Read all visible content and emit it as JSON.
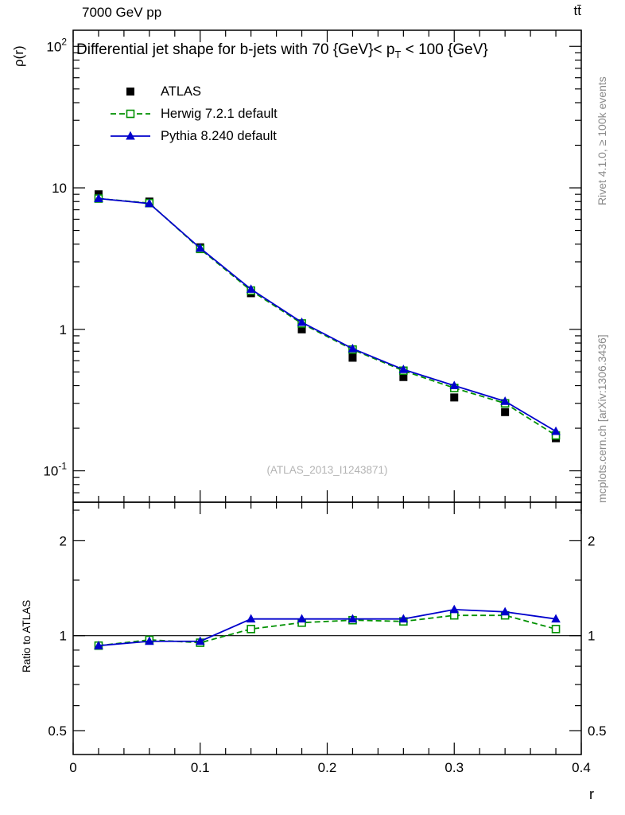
{
  "labels": {
    "header_left": "7000 GeV pp",
    "header_right": "tt̄",
    "title_prefix": "Differential jet shape for b-jets with 70 {GeV}< p",
    "title_sub": "T",
    "title_suffix": " < 100 {GeV}",
    "watermark": "(ATLAS_2013_I1243871)",
    "rivet_note": "Rivet 4.1.0, ≥ 100k events",
    "mcplots_note": "mcplots.cern.ch [arXiv:1306.3436]"
  },
  "chart_data": {
    "type": "line",
    "title": "Differential jet shape for b-jets with 70 {GeV}< p_T < 100 {GeV}",
    "xlabel": "r",
    "ylabel": "ρ(r)",
    "ratio_ylabel": "Ratio to ATLAS",
    "yscale": "log",
    "grid": false,
    "legend_position": "top-left",
    "xlim": [
      0,
      0.4
    ],
    "ylim_main": [
      0.06,
      130
    ],
    "ylim_ratio": [
      0.42,
      2.65
    ],
    "xticks": [
      0,
      0.1,
      0.2,
      0.3,
      0.4
    ],
    "yticks_main": [
      100,
      10,
      1,
      0.1
    ],
    "yticks_ratio": [
      2,
      1,
      0.5
    ],
    "ratio_minor_ticks": [
      0.6,
      0.7,
      0.8,
      0.9,
      1.5,
      2.5
    ],
    "x": [
      0.02,
      0.06,
      0.1,
      0.14,
      0.18,
      0.22,
      0.26,
      0.3,
      0.34,
      0.38
    ],
    "series": [
      {
        "name": "ATLAS",
        "color": "#000000",
        "marker": "filled-square",
        "line": "none",
        "values": [
          9.0,
          8.0,
          3.8,
          1.8,
          1.0,
          0.63,
          0.46,
          0.33,
          0.26,
          0.17
        ]
      },
      {
        "name": "Herwig 7.2.1 default",
        "color": "#009000",
        "marker": "open-square",
        "line": "dashed",
        "values": [
          8.4,
          7.8,
          3.7,
          1.88,
          1.1,
          0.72,
          0.51,
          0.385,
          0.3,
          0.178
        ]
      },
      {
        "name": "Pythia 8.240 default",
        "color": "#0000cc",
        "marker": "filled-triangle",
        "line": "solid",
        "values": [
          8.4,
          7.75,
          3.75,
          1.92,
          1.12,
          0.73,
          0.52,
          0.4,
          0.31,
          0.19
        ]
      }
    ],
    "ratio_series": [
      {
        "name": "Herwig 7.2.1 default",
        "color": "#009000",
        "marker": "open-square",
        "line": "dashed",
        "values": [
          0.93,
          0.97,
          0.95,
          1.05,
          1.1,
          1.12,
          1.11,
          1.16,
          1.16,
          1.05
        ]
      },
      {
        "name": "Pythia 8.240 default",
        "color": "#0000cc",
        "marker": "filled-triangle",
        "line": "solid",
        "values": [
          0.93,
          0.96,
          0.96,
          1.13,
          1.13,
          1.13,
          1.13,
          1.21,
          1.19,
          1.13
        ]
      }
    ]
  }
}
